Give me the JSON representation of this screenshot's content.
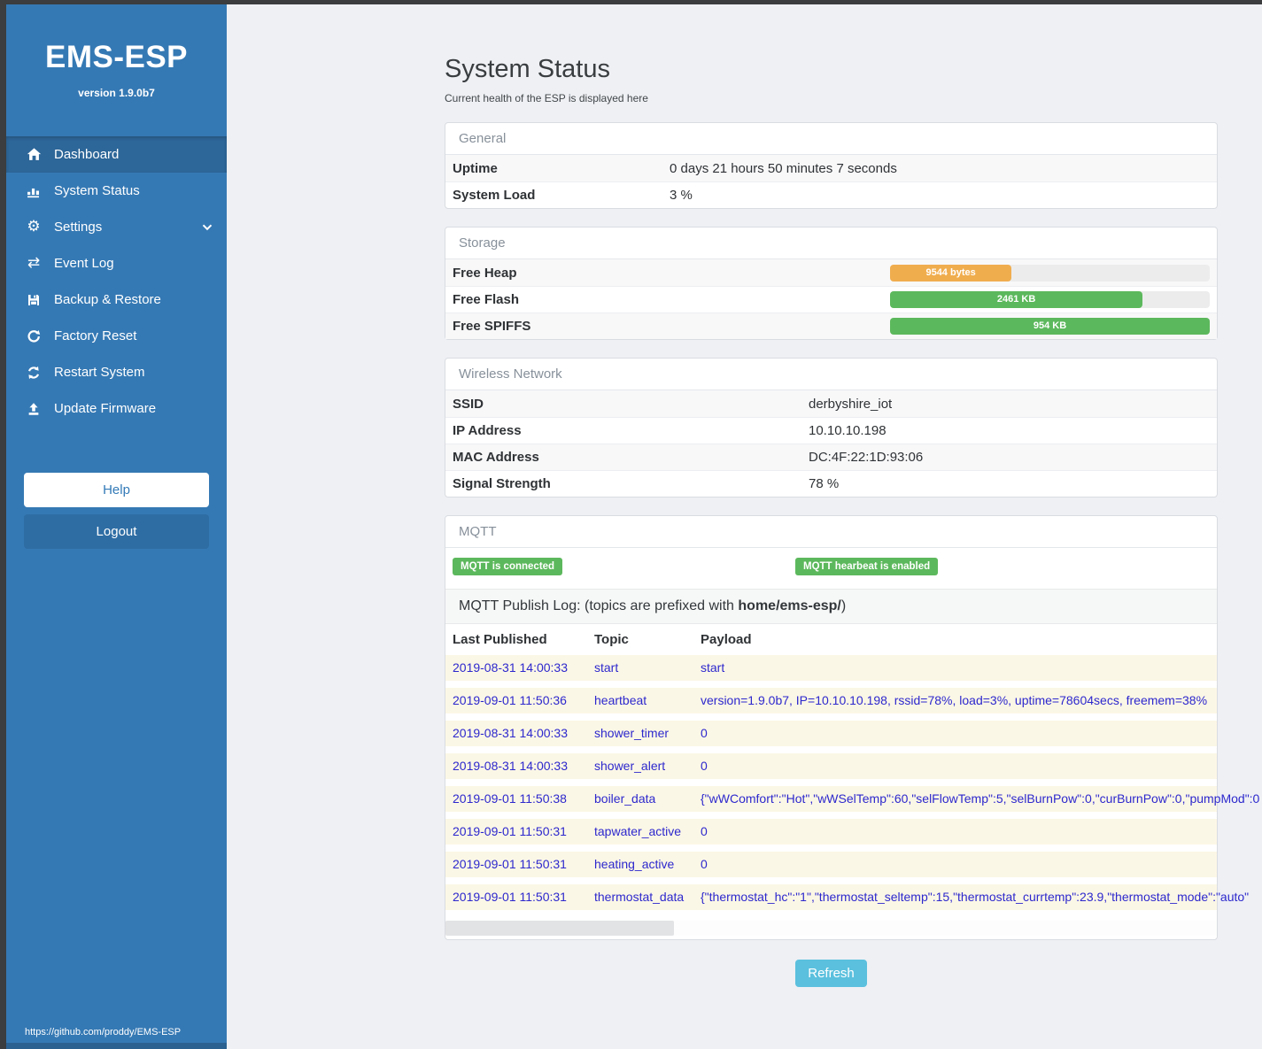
{
  "sidebar": {
    "title": "EMS-ESP",
    "version": "version 1.9.0b7",
    "menu": [
      {
        "label": "Dashboard",
        "icon": "home-icon",
        "active": true,
        "chevron": false
      },
      {
        "label": "System Status",
        "icon": "chart-icon",
        "active": false,
        "chevron": false
      },
      {
        "label": "Settings",
        "icon": "gear-icon",
        "active": false,
        "chevron": true
      },
      {
        "label": "Event Log",
        "icon": "exchange-icon",
        "active": false,
        "chevron": false
      },
      {
        "label": "Backup & Restore",
        "icon": "save-icon",
        "active": false,
        "chevron": false
      },
      {
        "label": "Factory Reset",
        "icon": "rotate-icon",
        "active": false,
        "chevron": false
      },
      {
        "label": "Restart System",
        "icon": "sync-icon",
        "active": false,
        "chevron": false
      },
      {
        "label": "Update Firmware",
        "icon": "upload-icon",
        "active": false,
        "chevron": false
      }
    ],
    "help_label": "Help",
    "logout_label": "Logout",
    "footer_url": "https://github.com/proddy/EMS-ESP"
  },
  "page": {
    "title": "System Status",
    "subtitle": "Current health of the ESP is displayed here"
  },
  "panels": {
    "general": {
      "header": "General",
      "rows": [
        {
          "label": "Uptime",
          "value": "0 days 21 hours 50 minutes 7 seconds"
        },
        {
          "label": "System Load",
          "value": "3 %"
        }
      ]
    },
    "storage": {
      "header": "Storage",
      "rows": [
        {
          "label": "Free Heap",
          "bar_label": "9544 bytes",
          "percent": 38,
          "color": "#f0ad4e"
        },
        {
          "label": "Free Flash",
          "bar_label": "2461 KB",
          "percent": 79,
          "color": "#5cb85c"
        },
        {
          "label": "Free SPIFFS",
          "bar_label": "954 KB",
          "percent": 100,
          "color": "#5cb85c"
        }
      ]
    },
    "wireless": {
      "header": "Wireless Network",
      "rows": [
        {
          "label": "SSID",
          "value": "derbyshire_iot"
        },
        {
          "label": "IP Address",
          "value": "10.10.10.198"
        },
        {
          "label": "MAC Address",
          "value": "DC:4F:22:1D:93:06"
        },
        {
          "label": "Signal Strength",
          "value": "78 %"
        }
      ]
    },
    "mqtt": {
      "header": "MQTT",
      "badges": [
        "MQTT is connected",
        "MQTT hearbeat is enabled"
      ],
      "log_title_prefix": "MQTT Publish Log: (topics are prefixed with ",
      "log_title_bold": "home/ems-esp/",
      "log_title_suffix": ")",
      "table": {
        "columns": [
          "Last Published",
          "Topic",
          "Payload"
        ],
        "rows": [
          {
            "last_published": "2019-08-31 14:00:33",
            "topic": "start",
            "payload": "start"
          },
          {
            "last_published": "2019-09-01 11:50:36",
            "topic": "heartbeat",
            "payload": "version=1.9.0b7, IP=10.10.10.198, rssid=78%, load=3%, uptime=78604secs, freemem=38%"
          },
          {
            "last_published": "2019-08-31 14:00:33",
            "topic": "shower_timer",
            "payload": "0"
          },
          {
            "last_published": "2019-08-31 14:00:33",
            "topic": "shower_alert",
            "payload": "0"
          },
          {
            "last_published": "2019-09-01 11:50:38",
            "topic": "boiler_data",
            "payload": "{\"wWComfort\":\"Hot\",\"wWSelTemp\":60,\"selFlowTemp\":5,\"selBurnPow\":0,\"curBurnPow\":0,\"pumpMod\":0"
          },
          {
            "last_published": "2019-09-01 11:50:31",
            "topic": "tapwater_active",
            "payload": "0"
          },
          {
            "last_published": "2019-09-01 11:50:31",
            "topic": "heating_active",
            "payload": "0"
          },
          {
            "last_published": "2019-09-01 11:50:31",
            "topic": "thermostat_data",
            "payload": "{\"thermostat_hc\":\"1\",\"thermostat_seltemp\":15,\"thermostat_currtemp\":23.9,\"thermostat_mode\":\"auto\""
          }
        ]
      }
    }
  },
  "actions": {
    "refresh_label": "Refresh"
  },
  "colors": {
    "sidebar": "#3579b4",
    "sidebar_active": "#2d6698",
    "accent": "#337ab7",
    "success": "#5cb85c",
    "warning": "#f0ad4e",
    "info": "#5bc0de",
    "log_text": "#2d28cd"
  }
}
